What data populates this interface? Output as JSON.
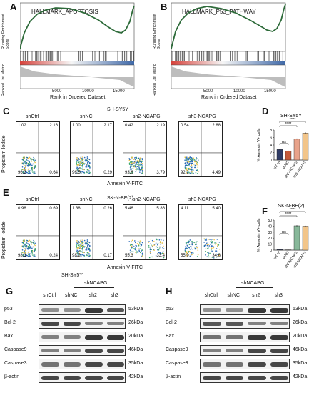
{
  "figure": {
    "panels": {
      "A": {
        "label": "A",
        "title": "HALLMARK_APOPTOSIS"
      },
      "B": {
        "label": "B",
        "title": "HALLMARK_P53_PATHWAY"
      },
      "gsea_common": {
        "ylabel_top": "Running Enrichment Score",
        "ylabel_bottom": "Ranked List Metric",
        "xlabel": "Rank in Ordered Dataset",
        "xticks": [
          "5000",
          "10000",
          "15000"
        ]
      },
      "C": {
        "label": "C",
        "cell_line": "SH-SY5Y",
        "xlabel": "Annexin Ⅴ-FITC",
        "ylabel": "Propidium Iodide",
        "plots": [
          {
            "name": "shCtrl",
            "ul": "1.02",
            "ur": "2.16",
            "ll": "96.2",
            "lr": "0.64"
          },
          {
            "name": "shNC",
            "ul": "1.00",
            "ur": "2.17",
            "ll": "96.5",
            "lr": "0.29"
          },
          {
            "name": "sh2-NCAPG",
            "ul": "0.42",
            "ur": "2.19",
            "ll": "93.6",
            "lr": "3.79"
          },
          {
            "name": "sh3-NCAPG",
            "ul": "0.54",
            "ur": "2.88",
            "ll": "92.1",
            "lr": "4.49"
          }
        ]
      },
      "E": {
        "label": "E",
        "cell_line": "SK-N-BE(2)",
        "xlabel": "Annexin Ⅴ-FITC",
        "ylabel": "Propidium Iodide",
        "plots": [
          {
            "name": "shCtrl",
            "ul": "0.98",
            "ur": "0.69",
            "ll": "98.1",
            "lr": "0.24"
          },
          {
            "name": "shNC",
            "ul": "1.38",
            "ur": "0.26",
            "ll": "98.2",
            "lr": "0.17"
          },
          {
            "name": "sh2-NCAPG",
            "ul": "5.46",
            "ur": "5.86",
            "ll": "55.3",
            "lr": "33.4"
          },
          {
            "name": "sh3-NCAPG",
            "ul": "4.11",
            "ur": "5.40",
            "ll": "55.9",
            "lr": "34.6"
          }
        ]
      },
      "D": {
        "label": "D",
        "title": "SH-SY5Y",
        "ylabel": "% Annexin Ⅴ+ cells",
        "yticks": [
          "0",
          "2",
          "4",
          "6",
          "8"
        ],
        "sig": [
          "ns",
          "****",
          "****"
        ]
      },
      "F": {
        "label": "F",
        "title": "SK-N-BE(2)",
        "ylabel": "% Annexin Ⅴ+ cells",
        "yticks": [
          "0",
          "10",
          "20",
          "30",
          "40",
          "50"
        ],
        "sig": [
          "ns",
          "****",
          "****"
        ]
      },
      "G": {
        "label": "G",
        "cell_line": "SH-SY5Y",
        "group": "shNCAPG",
        "lanes": [
          "shCtrl",
          "shNC",
          "sh2",
          "sh3"
        ]
      },
      "H": {
        "label": "H",
        "group": "shNCAPG",
        "lanes": [
          "shCtrl",
          "shNC",
          "sh2",
          "sh3"
        ]
      },
      "blots": [
        {
          "protein": "p53",
          "kda": "53kDa"
        },
        {
          "protein": "Bcl-2",
          "kda": "26kDa"
        },
        {
          "protein": "Bax",
          "kda": "20kDa"
        },
        {
          "protein": "Caspase9",
          "kda": "46kDa"
        },
        {
          "protein": "Caspase3",
          "kda": "35kDa"
        },
        {
          "protein": "β-actin",
          "kda": "42kDa"
        }
      ]
    }
  },
  "chart_data": [
    {
      "type": "bar",
      "panel": "D",
      "title": "SH-SY5Y",
      "categories": [
        "shCtrl",
        "shNC",
        "sh2-NCAPG",
        "sh3-NCAPG"
      ],
      "values": [
        2.8,
        2.4,
        5.6,
        7.2
      ],
      "errors": [
        0.1,
        0.1,
        0.15,
        0.2
      ],
      "ylabel": "% Annexin Ⅴ+ cells",
      "ylim": [
        0,
        8
      ],
      "colors": [
        "#2f3b66",
        "#c55a3b",
        "#e8a38b",
        "#f2c58a"
      ]
    },
    {
      "type": "bar",
      "panel": "F",
      "title": "SK-N-BE(2)",
      "categories": [
        "shCtrl",
        "shNC",
        "sh2-NCAPG",
        "sh3-NCAPG"
      ],
      "values": [
        1.0,
        0.5,
        40.5,
        40.0
      ],
      "errors": [
        0.2,
        0.2,
        1.0,
        0.6
      ],
      "ylabel": "% Annexin Ⅴ+ cells",
      "ylim": [
        0,
        50
      ],
      "colors": [
        "#2f3b66",
        "#c55a3b",
        "#88b89a",
        "#f2c58a"
      ]
    }
  ]
}
